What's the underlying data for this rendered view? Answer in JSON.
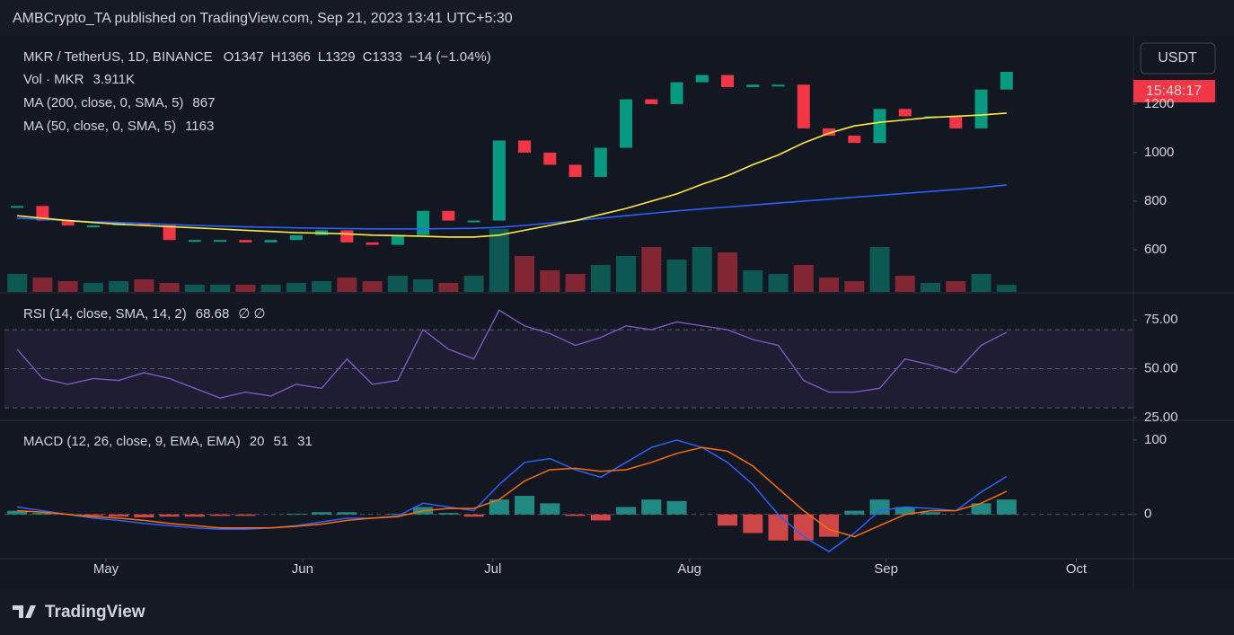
{
  "header": "AMBCrypto_TA published on TradingView.com, Sep 21, 2023 13:41 UTC+5:30",
  "footer": "TradingView",
  "chart_data": [
    {
      "type": "candlestick",
      "title": "MKR / TetherUS, 1D, BINANCE",
      "ohlc_legend": {
        "labels": [
          "O",
          "H",
          "L",
          "C"
        ],
        "values": [
          1347,
          1366,
          1329,
          1333
        ],
        "change": "−14 (−1.04%)"
      },
      "currency": "USDT",
      "countdown": "15:48:17",
      "up_color": "#089981",
      "down_color": "#f23645",
      "xlim": [
        "2023-04-15",
        "2023-10-10"
      ],
      "xticks": [
        {
          "value": "2023-05-01",
          "label": "May"
        },
        {
          "value": "2023-06-01",
          "label": "Jun"
        },
        {
          "value": "2023-07-01",
          "label": "Jul"
        },
        {
          "value": "2023-08-01",
          "label": "Aug"
        },
        {
          "value": "2023-09-01",
          "label": "Sep"
        },
        {
          "value": "2023-10-01",
          "label": "Oct"
        }
      ],
      "ylim": [
        426,
        1481
      ],
      "yticks": [
        600,
        800,
        1000,
        1200
      ],
      "x": [
        "2023-04-17",
        "2023-04-21",
        "2023-04-25",
        "2023-04-29",
        "2023-05-03",
        "2023-05-07",
        "2023-05-11",
        "2023-05-15",
        "2023-05-19",
        "2023-05-23",
        "2023-05-27",
        "2023-05-31",
        "2023-06-04",
        "2023-06-08",
        "2023-06-12",
        "2023-06-16",
        "2023-06-20",
        "2023-06-24",
        "2023-06-28",
        "2023-07-02",
        "2023-07-06",
        "2023-07-10",
        "2023-07-14",
        "2023-07-18",
        "2023-07-22",
        "2023-07-26",
        "2023-07-30",
        "2023-08-03",
        "2023-08-07",
        "2023-08-11",
        "2023-08-15",
        "2023-08-19",
        "2023-08-23",
        "2023-08-27",
        "2023-08-31",
        "2023-09-04",
        "2023-09-08",
        "2023-09-12",
        "2023-09-16",
        "2023-09-20"
      ],
      "close": [
        780,
        720,
        700,
        700,
        710,
        700,
        640,
        640,
        640,
        630,
        640,
        660,
        680,
        630,
        620,
        660,
        760,
        720,
        720,
        1050,
        1000,
        950,
        900,
        1020,
        1220,
        1200,
        1290,
        1320,
        1270,
        1280,
        1280,
        1100,
        1070,
        1040,
        1180,
        1150,
        1150,
        1100,
        1260,
        1333
      ],
      "volume": {
        "name": "Vol · MKR",
        "legend_value": "3.911K",
        "ylim": [
          0,
          40
        ],
        "values": [
          10,
          8,
          6,
          5,
          6,
          7,
          5,
          4,
          4,
          4,
          4,
          5,
          6,
          8,
          6,
          9,
          7,
          5,
          9,
          35,
          20,
          12,
          10,
          15,
          20,
          25,
          18,
          25,
          22,
          12,
          10,
          15,
          8,
          6,
          25,
          9,
          5,
          6,
          10,
          3.911
        ]
      },
      "series": [
        {
          "name": "MA (200, close, 0, SMA, 5)",
          "color": "#2962ff",
          "values": [
            730,
            725,
            720,
            715,
            712,
            708,
            704,
            700,
            697,
            694,
            692,
            690,
            688,
            687,
            686,
            686,
            686,
            687,
            688,
            692,
            700,
            710,
            720,
            730,
            740,
            750,
            760,
            768,
            776,
            784,
            792,
            800,
            808,
            816,
            824,
            832,
            840,
            848,
            856,
            867
          ]
        },
        {
          "name": "MA (50, close, 0, SMA, 5)",
          "color": "#ffeb3b",
          "values": [
            740,
            730,
            720,
            712,
            705,
            700,
            695,
            690,
            685,
            680,
            675,
            670,
            668,
            665,
            660,
            658,
            655,
            652,
            652,
            660,
            680,
            700,
            720,
            745,
            770,
            800,
            830,
            870,
            905,
            950,
            990,
            1040,
            1080,
            1110,
            1125,
            1135,
            1145,
            1150,
            1155,
            1163
          ]
        }
      ]
    },
    {
      "type": "line",
      "title": "RSI (14, close, SMA, 14, 2)",
      "extra": "∅ ∅",
      "color": "#7e57c2",
      "ylim": [
        24,
        88
      ],
      "yticks": [
        {
          "value": 75,
          "label": "75.00"
        },
        {
          "value": 50,
          "label": "50.00"
        },
        {
          "value": 25,
          "label": "25.00"
        }
      ],
      "levels": [
        30,
        50,
        70
      ],
      "values": [
        60,
        45,
        42,
        45,
        44,
        48,
        45,
        40,
        35,
        38,
        36,
        42,
        40,
        55,
        42,
        44,
        70,
        60,
        55,
        80,
        72,
        68,
        62,
        66,
        72,
        70,
        74,
        72,
        70,
        65,
        62,
        44,
        38,
        38,
        40,
        55,
        52,
        48,
        62,
        68.68
      ]
    },
    {
      "type": "macd",
      "title": "MACD (12, 26, close, 9, EMA, EMA)",
      "ylim": [
        -57,
        124
      ],
      "yticks": [
        0,
        100
      ],
      "histogram": {
        "name": "Histogram",
        "color": "#26a69a",
        "negative_color": "#ff5252",
        "values": [
          5,
          2,
          0,
          -2,
          -3,
          -4,
          -3,
          -3,
          -2,
          -2,
          0,
          1,
          3,
          3,
          0,
          1,
          10,
          2,
          -3,
          20,
          25,
          15,
          -2,
          -8,
          10,
          20,
          18,
          0,
          -15,
          -25,
          -35,
          -35,
          -30,
          5,
          20,
          10,
          3,
          0,
          15,
          20
        ]
      },
      "series": [
        {
          "name": "MACD",
          "color": "#2962ff",
          "values": [
            10,
            5,
            0,
            -5,
            -8,
            -12,
            -15,
            -18,
            -20,
            -20,
            -18,
            -15,
            -10,
            -5,
            -5,
            -2,
            15,
            10,
            5,
            40,
            70,
            75,
            60,
            50,
            70,
            90,
            100,
            90,
            70,
            40,
            0,
            -30,
            -50,
            -25,
            5,
            10,
            8,
            5,
            30,
            51
          ]
        },
        {
          "name": "Signal",
          "color": "#ff6d00",
          "values": [
            5,
            3,
            0,
            -3,
            -5,
            -8,
            -12,
            -15,
            -18,
            -18,
            -18,
            -16,
            -13,
            -8,
            -5,
            -3,
            5,
            8,
            8,
            20,
            45,
            60,
            62,
            58,
            60,
            70,
            82,
            90,
            85,
            65,
            35,
            5,
            -20,
            -30,
            -15,
            0,
            5,
            5,
            15,
            31
          ]
        }
      ]
    }
  ]
}
